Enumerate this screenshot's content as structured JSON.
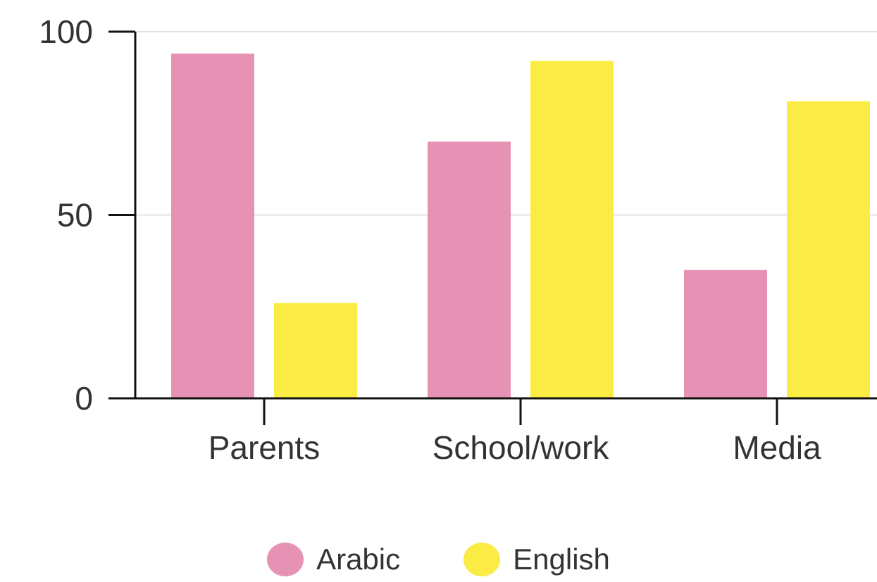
{
  "chart_data": {
    "type": "bar",
    "categories": [
      "Parents",
      "School/work",
      "Media"
    ],
    "series": [
      {
        "name": "Arabic",
        "values": [
          94,
          70,
          35
        ],
        "color": "#e592b4"
      },
      {
        "name": "English",
        "values": [
          26,
          92,
          81
        ],
        "color": "#fbeb45"
      }
    ],
    "ylim": [
      0,
      100
    ],
    "yticks": [
      0,
      50,
      100
    ],
    "grid": true,
    "legend_position": "bottom"
  }
}
